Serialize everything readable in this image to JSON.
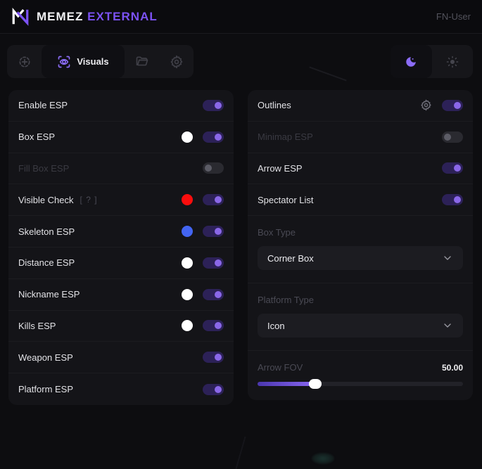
{
  "colors": {
    "accent": "#7c52f4",
    "toggle_on_track": "#2c2157",
    "toggle_on_knob": "#8a67e8",
    "slider_fill": "#8a68f2",
    "panel_bg": "#141418",
    "page_bg": "#0d0d10"
  },
  "header": {
    "brand_primary": "MEMEZ",
    "brand_accent": "EXTERNAL",
    "user_label": "FN-User"
  },
  "toolbar": {
    "tabs": [
      {
        "id": "aimbot",
        "icon": "crosshair-icon",
        "active": false
      },
      {
        "id": "visuals",
        "icon": "scan-eye-icon",
        "label": "Visuals",
        "active": true
      },
      {
        "id": "configs",
        "icon": "folder-icon",
        "active": false
      },
      {
        "id": "settings",
        "icon": "gear-icon",
        "active": false
      }
    ],
    "theme": {
      "active": "dark",
      "dark_icon": "moon-icon",
      "light_icon": "sun-icon"
    }
  },
  "left_panel": {
    "rows": [
      {
        "label": "Enable ESP",
        "enabled": true,
        "disabled": false
      },
      {
        "label": "Box ESP",
        "swatch": "#ffffff",
        "enabled": true,
        "disabled": false
      },
      {
        "label": "Fill Box ESP",
        "enabled": false,
        "disabled": true
      },
      {
        "label": "Visible Check",
        "hint": "[ ? ]",
        "swatch": "#fb0d0d",
        "enabled": true,
        "disabled": false
      },
      {
        "label": "Skeleton ESP",
        "swatch": "#4365f2",
        "enabled": true,
        "disabled": false
      },
      {
        "label": "Distance ESP",
        "swatch": "#ffffff",
        "enabled": true,
        "disabled": false
      },
      {
        "label": "Nickname ESP",
        "swatch": "#ffffff",
        "enabled": true,
        "disabled": false
      },
      {
        "label": "Kills ESP",
        "swatch": "#ffffff",
        "enabled": true,
        "disabled": false
      },
      {
        "label": "Weapon ESP",
        "enabled": true,
        "disabled": false
      },
      {
        "label": "Platform ESP",
        "enabled": true,
        "disabled": false
      }
    ]
  },
  "right_panel": {
    "rows": [
      {
        "label": "Outlines",
        "enabled": true,
        "disabled": false,
        "has_settings": true
      },
      {
        "label": "Minimap ESP",
        "enabled": false,
        "disabled": true
      },
      {
        "label": "Arrow ESP",
        "enabled": true,
        "disabled": false
      },
      {
        "label": "Spectator List",
        "enabled": true,
        "disabled": false
      }
    ],
    "box_type": {
      "label": "Box Type",
      "value": "Corner Box"
    },
    "platform_type": {
      "label": "Platform Type",
      "value": "Icon"
    },
    "arrow_fov": {
      "label": "Arrow FOV",
      "value": "50.00",
      "percent": 28
    }
  }
}
